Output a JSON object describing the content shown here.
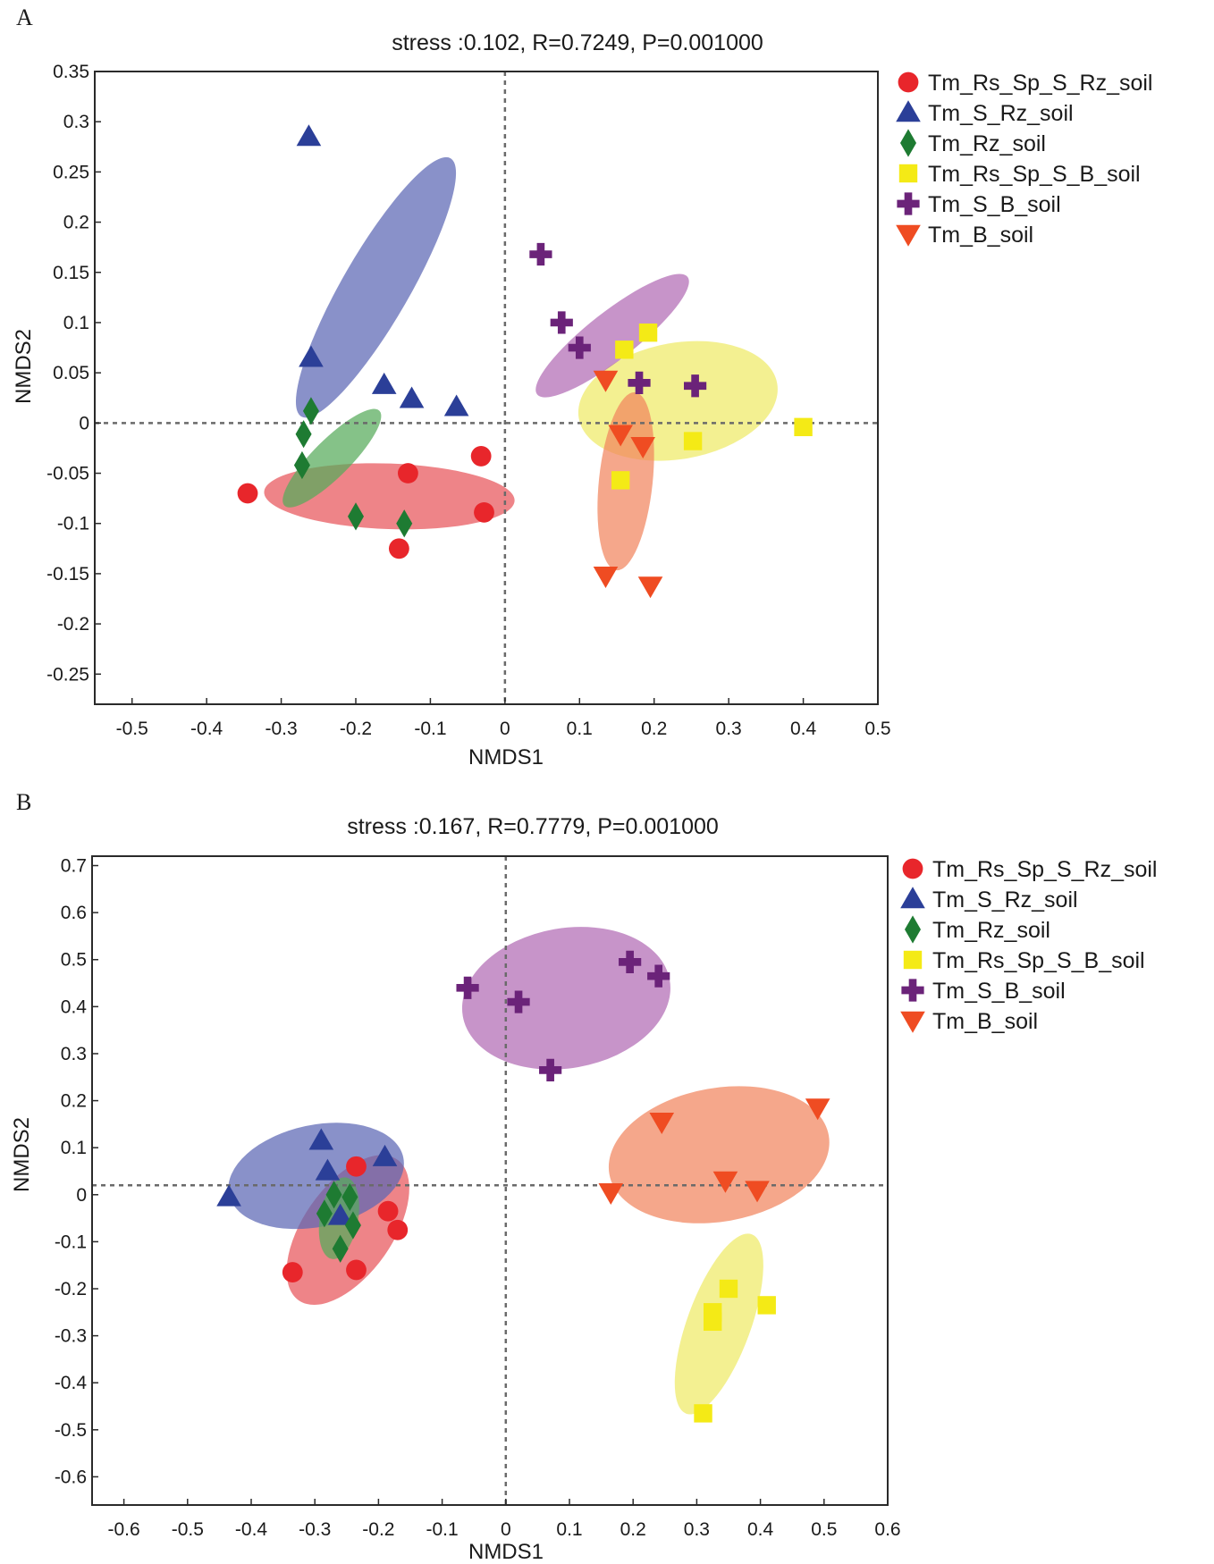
{
  "figure_label_a": "A",
  "figure_label_b": "B",
  "chart_data": [
    {
      "id": "A",
      "panel_label": "A",
      "type": "scatter",
      "title": "stress :0.102, R=0.7249, P=0.001000",
      "xlabel": "NMDS1",
      "ylabel": "NMDS2",
      "xlim": [
        -0.55,
        0.5
      ],
      "ylim": [
        -0.28,
        0.35
      ],
      "xticks": [
        -0.5,
        -0.4,
        -0.3,
        -0.2,
        -0.1,
        0,
        0.1,
        0.2,
        0.3,
        0.4,
        0.5
      ],
      "xtick_labels": [
        "-0.5",
        "-0.4",
        "-0.3",
        "-0.2",
        "-0.1",
        "0",
        "0.1",
        "0.2",
        "0.3",
        "0.4",
        "0.5"
      ],
      "yticks": [
        0.35,
        0.3,
        0.25,
        0.2,
        0.15,
        0.1,
        0.05,
        0,
        -0.05,
        -0.1,
        -0.15,
        -0.2,
        -0.25
      ],
      "ytick_labels": [
        "0.35",
        "0.3",
        "0.25",
        "0.2",
        "0.15",
        "0.1",
        "0.05",
        "0",
        "-0.05",
        "-0.1",
        "-0.15",
        "-0.2",
        "-0.25"
      ],
      "reference_lines": {
        "x": 0,
        "y": 0
      },
      "legend_position": "outside-right-top",
      "series": [
        {
          "name": "Tm_Rs_Sp_S_Rz_soil",
          "marker": "circle",
          "color": "#e8262b",
          "ellipse_color": "#e8555a",
          "points": [
            [
              -0.345,
              -0.07
            ],
            [
              -0.13,
              -0.05
            ],
            [
              -0.032,
              -0.033
            ],
            [
              -0.028,
              -0.089
            ],
            [
              -0.142,
              -0.125
            ]
          ],
          "ellipse": {
            "cx": -0.155,
            "cy": -0.073,
            "rx": 0.168,
            "ry": 0.044,
            "angle": 2
          }
        },
        {
          "name": "Tm_S_Rz_soil",
          "marker": "triangle-up",
          "color": "#2b3f98",
          "ellipse_color": "#5c66b4",
          "points": [
            [
              -0.263,
              0.285
            ],
            [
              -0.26,
              0.065
            ],
            [
              -0.162,
              0.038
            ],
            [
              -0.125,
              0.024
            ],
            [
              -0.065,
              0.016
            ]
          ],
          "ellipse": {
            "cx": -0.173,
            "cy": 0.135,
            "rx": 0.2,
            "ry": 0.045,
            "angle": -60
          }
        },
        {
          "name": "Tm_Rz_soil",
          "marker": "diamond",
          "color": "#1e7b32",
          "ellipse_color": "#56ab5a",
          "points": [
            [
              -0.26,
              0.012
            ],
            [
              -0.27,
              -0.011
            ],
            [
              -0.272,
              -0.042
            ],
            [
              -0.2,
              -0.093
            ],
            [
              -0.135,
              -0.1
            ]
          ],
          "ellipse": {
            "cx": -0.232,
            "cy": -0.035,
            "rx": 0.09,
            "ry": 0.025,
            "angle": -45
          }
        },
        {
          "name": "Tm_Rs_Sp_S_B_soil",
          "marker": "square",
          "color": "#f4ea16",
          "ellipse_color": "#eeea66",
          "points": [
            [
              0.16,
              0.073
            ],
            [
              0.192,
              0.09
            ],
            [
              0.252,
              -0.018
            ],
            [
              0.4,
              -0.004
            ],
            [
              0.155,
              -0.057
            ]
          ],
          "ellipse": {
            "cx": 0.232,
            "cy": 0.022,
            "rx": 0.135,
            "ry": 0.078,
            "angle": -10
          }
        },
        {
          "name": "Tm_S_B_soil",
          "marker": "plus",
          "color": "#6b2379",
          "ellipse_color": "#b16bb4",
          "points": [
            [
              0.048,
              0.168
            ],
            [
              0.076,
              0.1
            ],
            [
              0.1,
              0.075
            ],
            [
              0.18,
              0.04
            ],
            [
              0.255,
              0.037
            ]
          ],
          "ellipse": {
            "cx": 0.144,
            "cy": 0.087,
            "rx": 0.128,
            "ry": 0.032,
            "angle": -38
          }
        },
        {
          "name": "Tm_B_soil",
          "marker": "triangle-down",
          "color": "#ef4c22",
          "ellipse_color": "#f1855e",
          "points": [
            [
              0.135,
              0.043
            ],
            [
              0.155,
              -0.011
            ],
            [
              0.185,
              -0.023
            ],
            [
              0.135,
              -0.152
            ],
            [
              0.195,
              -0.162
            ]
          ],
          "ellipse": {
            "cx": 0.162,
            "cy": -0.058,
            "rx": 0.12,
            "ry": 0.036,
            "angle": -84
          }
        }
      ]
    },
    {
      "id": "B",
      "panel_label": "B",
      "type": "scatter",
      "title": "stress :0.167, R=0.7779, P=0.001000",
      "xlabel": "NMDS1",
      "ylabel": "NMDS2",
      "xlim": [
        -0.65,
        0.6
      ],
      "ylim": [
        -0.66,
        0.72
      ],
      "xticks": [
        -0.6,
        -0.5,
        -0.4,
        -0.3,
        -0.2,
        -0.1,
        0,
        0.1,
        0.2,
        0.3,
        0.4,
        0.5,
        0.6
      ],
      "xtick_labels": [
        "-0.6",
        "-0.5",
        "-0.4",
        "-0.3",
        "-0.2",
        "-0.1",
        "0",
        "0.1",
        "0.2",
        "0.3",
        "0.4",
        "0.5",
        "0.6"
      ],
      "yticks": [
        0.7,
        0.6,
        0.5,
        0.4,
        0.3,
        0.2,
        0.1,
        0,
        -0.1,
        -0.2,
        -0.3,
        -0.4,
        -0.5,
        -0.6
      ],
      "ytick_labels": [
        "0.7",
        "0.6",
        "0.5",
        "0.4",
        "0.3",
        "0.2",
        "0.1",
        "0",
        "-0.1",
        "-0.2",
        "-0.3",
        "-0.4",
        "-0.5",
        "-0.6"
      ],
      "reference_lines": {
        "x": 0,
        "y": 0.02
      },
      "legend_position": "outside-right-top",
      "series": [
        {
          "name": "Tm_Rs_Sp_S_Rz_soil",
          "marker": "circle",
          "color": "#e8262b",
          "ellipse_color": "#e8555a",
          "points": [
            [
              -0.235,
              0.06
            ],
            [
              -0.185,
              -0.035
            ],
            [
              -0.17,
              -0.075
            ],
            [
              -0.335,
              -0.165
            ],
            [
              -0.235,
              -0.16
            ]
          ],
          "ellipse": {
            "cx": -0.248,
            "cy": -0.075,
            "rx": 0.135,
            "ry": 0.07,
            "angle": -55
          }
        },
        {
          "name": "Tm_S_Rz_soil",
          "marker": "triangle-up",
          "color": "#2b3f98",
          "ellipse_color": "#5c66b4",
          "points": [
            [
              -0.435,
              -0.005
            ],
            [
              -0.29,
              0.115
            ],
            [
              -0.28,
              0.05
            ],
            [
              -0.19,
              0.08
            ],
            [
              -0.26,
              -0.045
            ]
          ],
          "ellipse": {
            "cx": -0.298,
            "cy": 0.04,
            "rx": 0.14,
            "ry": 0.08,
            "angle": -12
          }
        },
        {
          "name": "Tm_Rz_soil",
          "marker": "diamond",
          "color": "#1e7b32",
          "ellipse_color": "#56ab5a",
          "points": [
            [
              -0.27,
              0.0
            ],
            [
              -0.245,
              -0.005
            ],
            [
              -0.285,
              -0.04
            ],
            [
              -0.24,
              -0.065
            ],
            [
              -0.26,
              -0.115
            ]
          ],
          "ellipse": {
            "cx": -0.262,
            "cy": -0.05,
            "rx": 0.065,
            "ry": 0.03,
            "angle": -80
          }
        },
        {
          "name": "Tm_Rs_Sp_S_B_soil",
          "marker": "square",
          "color": "#f4ea16",
          "ellipse_color": "#eeea66",
          "points": [
            [
              0.35,
              -0.2
            ],
            [
              0.325,
              -0.25
            ],
            [
              0.325,
              -0.27
            ],
            [
              0.41,
              -0.235
            ],
            [
              0.31,
              -0.465
            ]
          ],
          "ellipse": {
            "cx": 0.335,
            "cy": -0.275,
            "rx": 0.15,
            "ry": 0.05,
            "angle": -70
          }
        },
        {
          "name": "Tm_S_B_soil",
          "marker": "plus",
          "color": "#6b2379",
          "ellipse_color": "#b16bb4",
          "points": [
            [
              -0.06,
              0.44
            ],
            [
              0.02,
              0.41
            ],
            [
              0.195,
              0.495
            ],
            [
              0.24,
              0.465
            ],
            [
              0.07,
              0.265
            ]
          ],
          "ellipse": {
            "cx": 0.095,
            "cy": 0.418,
            "rx": 0.165,
            "ry": 0.11,
            "angle": -10
          }
        },
        {
          "name": "Tm_B_soil",
          "marker": "triangle-down",
          "color": "#ef4c22",
          "ellipse_color": "#f1855e",
          "points": [
            [
              0.245,
              0.155
            ],
            [
              0.49,
              0.185
            ],
            [
              0.345,
              0.03
            ],
            [
              0.395,
              0.01
            ],
            [
              0.165,
              0.005
            ]
          ],
          "ellipse": {
            "cx": 0.335,
            "cy": 0.085,
            "rx": 0.175,
            "ry": 0.105,
            "angle": -10
          }
        }
      ]
    }
  ]
}
